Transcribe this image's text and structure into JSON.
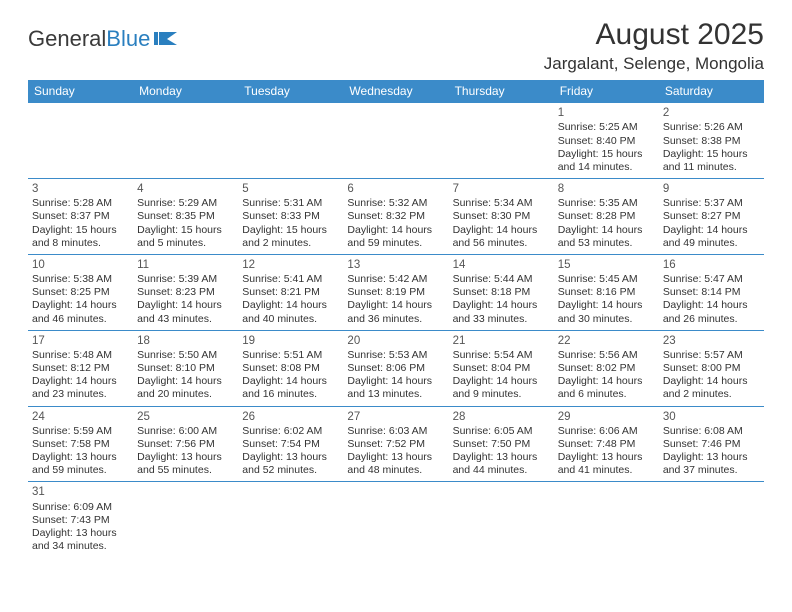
{
  "logo": {
    "text_general": "General",
    "text_blue": "Blue"
  },
  "header": {
    "month_title": "August 2025",
    "location": "Jargalant, Selenge, Mongolia"
  },
  "colors": {
    "header_bar": "#3b8bc9",
    "header_text": "#ffffff",
    "row_border": "#3b8bc9",
    "body_text": "#333333",
    "background": "#ffffff"
  },
  "day_names": [
    "Sunday",
    "Monday",
    "Tuesday",
    "Wednesday",
    "Thursday",
    "Friday",
    "Saturday"
  ],
  "weeks": [
    [
      {
        "empty": true
      },
      {
        "empty": true
      },
      {
        "empty": true
      },
      {
        "empty": true
      },
      {
        "empty": true
      },
      {
        "num": "1",
        "sunrise": "Sunrise: 5:25 AM",
        "sunset": "Sunset: 8:40 PM",
        "daylight": "Daylight: 15 hours and 14 minutes."
      },
      {
        "num": "2",
        "sunrise": "Sunrise: 5:26 AM",
        "sunset": "Sunset: 8:38 PM",
        "daylight": "Daylight: 15 hours and 11 minutes."
      }
    ],
    [
      {
        "num": "3",
        "sunrise": "Sunrise: 5:28 AM",
        "sunset": "Sunset: 8:37 PM",
        "daylight": "Daylight: 15 hours and 8 minutes."
      },
      {
        "num": "4",
        "sunrise": "Sunrise: 5:29 AM",
        "sunset": "Sunset: 8:35 PM",
        "daylight": "Daylight: 15 hours and 5 minutes."
      },
      {
        "num": "5",
        "sunrise": "Sunrise: 5:31 AM",
        "sunset": "Sunset: 8:33 PM",
        "daylight": "Daylight: 15 hours and 2 minutes."
      },
      {
        "num": "6",
        "sunrise": "Sunrise: 5:32 AM",
        "sunset": "Sunset: 8:32 PM",
        "daylight": "Daylight: 14 hours and 59 minutes."
      },
      {
        "num": "7",
        "sunrise": "Sunrise: 5:34 AM",
        "sunset": "Sunset: 8:30 PM",
        "daylight": "Daylight: 14 hours and 56 minutes."
      },
      {
        "num": "8",
        "sunrise": "Sunrise: 5:35 AM",
        "sunset": "Sunset: 8:28 PM",
        "daylight": "Daylight: 14 hours and 53 minutes."
      },
      {
        "num": "9",
        "sunrise": "Sunrise: 5:37 AM",
        "sunset": "Sunset: 8:27 PM",
        "daylight": "Daylight: 14 hours and 49 minutes."
      }
    ],
    [
      {
        "num": "10",
        "sunrise": "Sunrise: 5:38 AM",
        "sunset": "Sunset: 8:25 PM",
        "daylight": "Daylight: 14 hours and 46 minutes."
      },
      {
        "num": "11",
        "sunrise": "Sunrise: 5:39 AM",
        "sunset": "Sunset: 8:23 PM",
        "daylight": "Daylight: 14 hours and 43 minutes."
      },
      {
        "num": "12",
        "sunrise": "Sunrise: 5:41 AM",
        "sunset": "Sunset: 8:21 PM",
        "daylight": "Daylight: 14 hours and 40 minutes."
      },
      {
        "num": "13",
        "sunrise": "Sunrise: 5:42 AM",
        "sunset": "Sunset: 8:19 PM",
        "daylight": "Daylight: 14 hours and 36 minutes."
      },
      {
        "num": "14",
        "sunrise": "Sunrise: 5:44 AM",
        "sunset": "Sunset: 8:18 PM",
        "daylight": "Daylight: 14 hours and 33 minutes."
      },
      {
        "num": "15",
        "sunrise": "Sunrise: 5:45 AM",
        "sunset": "Sunset: 8:16 PM",
        "daylight": "Daylight: 14 hours and 30 minutes."
      },
      {
        "num": "16",
        "sunrise": "Sunrise: 5:47 AM",
        "sunset": "Sunset: 8:14 PM",
        "daylight": "Daylight: 14 hours and 26 minutes."
      }
    ],
    [
      {
        "num": "17",
        "sunrise": "Sunrise: 5:48 AM",
        "sunset": "Sunset: 8:12 PM",
        "daylight": "Daylight: 14 hours and 23 minutes."
      },
      {
        "num": "18",
        "sunrise": "Sunrise: 5:50 AM",
        "sunset": "Sunset: 8:10 PM",
        "daylight": "Daylight: 14 hours and 20 minutes."
      },
      {
        "num": "19",
        "sunrise": "Sunrise: 5:51 AM",
        "sunset": "Sunset: 8:08 PM",
        "daylight": "Daylight: 14 hours and 16 minutes."
      },
      {
        "num": "20",
        "sunrise": "Sunrise: 5:53 AM",
        "sunset": "Sunset: 8:06 PM",
        "daylight": "Daylight: 14 hours and 13 minutes."
      },
      {
        "num": "21",
        "sunrise": "Sunrise: 5:54 AM",
        "sunset": "Sunset: 8:04 PM",
        "daylight": "Daylight: 14 hours and 9 minutes."
      },
      {
        "num": "22",
        "sunrise": "Sunrise: 5:56 AM",
        "sunset": "Sunset: 8:02 PM",
        "daylight": "Daylight: 14 hours and 6 minutes."
      },
      {
        "num": "23",
        "sunrise": "Sunrise: 5:57 AM",
        "sunset": "Sunset: 8:00 PM",
        "daylight": "Daylight: 14 hours and 2 minutes."
      }
    ],
    [
      {
        "num": "24",
        "sunrise": "Sunrise: 5:59 AM",
        "sunset": "Sunset: 7:58 PM",
        "daylight": "Daylight: 13 hours and 59 minutes."
      },
      {
        "num": "25",
        "sunrise": "Sunrise: 6:00 AM",
        "sunset": "Sunset: 7:56 PM",
        "daylight": "Daylight: 13 hours and 55 minutes."
      },
      {
        "num": "26",
        "sunrise": "Sunrise: 6:02 AM",
        "sunset": "Sunset: 7:54 PM",
        "daylight": "Daylight: 13 hours and 52 minutes."
      },
      {
        "num": "27",
        "sunrise": "Sunrise: 6:03 AM",
        "sunset": "Sunset: 7:52 PM",
        "daylight": "Daylight: 13 hours and 48 minutes."
      },
      {
        "num": "28",
        "sunrise": "Sunrise: 6:05 AM",
        "sunset": "Sunset: 7:50 PM",
        "daylight": "Daylight: 13 hours and 44 minutes."
      },
      {
        "num": "29",
        "sunrise": "Sunrise: 6:06 AM",
        "sunset": "Sunset: 7:48 PM",
        "daylight": "Daylight: 13 hours and 41 minutes."
      },
      {
        "num": "30",
        "sunrise": "Sunrise: 6:08 AM",
        "sunset": "Sunset: 7:46 PM",
        "daylight": "Daylight: 13 hours and 37 minutes."
      }
    ],
    [
      {
        "num": "31",
        "sunrise": "Sunrise: 6:09 AM",
        "sunset": "Sunset: 7:43 PM",
        "daylight": "Daylight: 13 hours and 34 minutes."
      },
      {
        "empty": true
      },
      {
        "empty": true
      },
      {
        "empty": true
      },
      {
        "empty": true
      },
      {
        "empty": true
      },
      {
        "empty": true
      }
    ]
  ]
}
